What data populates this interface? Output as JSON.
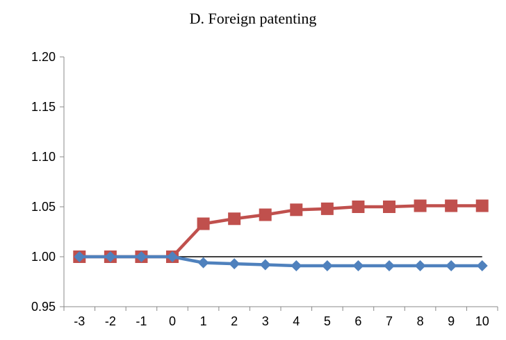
{
  "chart_data": {
    "type": "line",
    "title": "D. Foreign patenting",
    "xlabel": "",
    "ylabel": "",
    "categories": [
      "-3",
      "-2",
      "-1",
      "0",
      "1",
      "2",
      "3",
      "4",
      "5",
      "6",
      "7",
      "8",
      "9",
      "10"
    ],
    "ylim": [
      0.95,
      1.2
    ],
    "yticks": [
      "0.95",
      "1.00",
      "1.05",
      "1.10",
      "1.15",
      "1.20"
    ],
    "grid": false,
    "reference_line": {
      "y": 1.0,
      "from": "-3",
      "to": "10",
      "color": "#000000"
    },
    "series": [
      {
        "marker": "square",
        "color": "#C0504D",
        "values": [
          1.0,
          1.0,
          1.0,
          1.0,
          1.033,
          1.038,
          1.042,
          1.047,
          1.048,
          1.05,
          1.05,
          1.051,
          1.051,
          1.051
        ]
      },
      {
        "marker": "diamond",
        "color": "#4F81BD",
        "values": [
          1.0,
          1.0,
          1.0,
          1.0,
          0.994,
          0.993,
          0.992,
          0.991,
          0.991,
          0.991,
          0.991,
          0.991,
          0.991,
          0.991
        ]
      }
    ]
  }
}
